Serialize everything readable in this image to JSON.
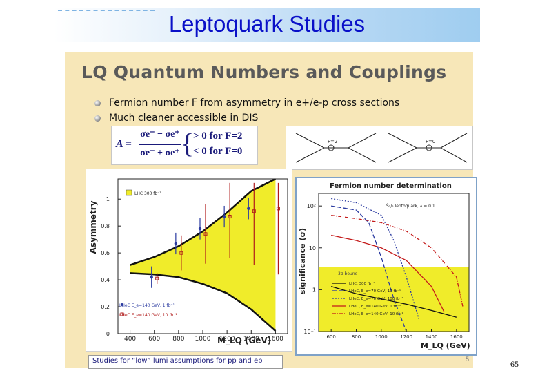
{
  "header": {
    "title": "Leptoquark Studies"
  },
  "slide": {
    "title": "LQ Quantum Numbers and Couplings",
    "bullets": [
      "Fermion number F from asymmetry in e+/e-p cross sections",
      "Much cleaner accessible in DIS"
    ],
    "formula": {
      "lhs": "A =",
      "numerator": "σe⁻ − σe⁺",
      "denominator": "σe⁻ + σe⁺",
      "case_1": "> 0 for F=2",
      "case_2": "< 0 for F=0"
    },
    "diagrams": {
      "left_label": "F=2",
      "right_label": "F=0"
    },
    "footer_note": "Studies for “low” lumi assumptions for pp and ep",
    "slide_number": "5"
  },
  "page_number": "65",
  "colors": {
    "title": "#0a10c8",
    "slide_bg": "#f7e7b8",
    "band_yellow": "#f0ec2a"
  },
  "chart_data": [
    {
      "type": "scatter",
      "ylabel": "Asymmetry",
      "xlabel": "M_LQ (GeV)",
      "xlim": [
        300,
        1700
      ],
      "ylim": [
        0,
        1.15
      ],
      "x_ticks": [
        "400",
        "600",
        "800",
        "1000",
        "1200",
        "1400",
        "1600"
      ],
      "y_ticks": [
        "0",
        "0.2",
        "0.4",
        "0.6",
        "0.8",
        "1"
      ],
      "legend": {
        "band": "LHC 300 fb⁻¹",
        "series_1": "LHeC E_e=140 GeV, 1 fb⁻¹",
        "series_2": "LHeC E_e=140 GeV, 10 fb⁻¹"
      },
      "series": [
        {
          "name": "LHeC E_e=140 GeV, 1 fb⁻¹",
          "x": [
            600,
            800,
            1000,
            1200,
            1400
          ],
          "y": [
            0.42,
            0.67,
            0.78,
            0.87,
            0.93
          ]
        },
        {
          "name": "LHeC E_e=140 GeV, 10 fb⁻¹",
          "x": [
            600,
            800,
            1000,
            1200,
            1400,
            1600
          ],
          "y": [
            0.41,
            0.6,
            0.74,
            0.87,
            0.91,
            0.93
          ]
        }
      ],
      "band": {
        "x": [
          400,
          600,
          800,
          1000,
          1200,
          1400,
          1600
        ],
        "upper": [
          0.51,
          0.57,
          0.65,
          0.76,
          0.9,
          1.06,
          1.15
        ],
        "lower": [
          0.45,
          0.44,
          0.42,
          0.37,
          0.3,
          0.18,
          0.02
        ]
      }
    },
    {
      "type": "line",
      "title": "Fermion number determination",
      "ylabel": "significance (σ)",
      "xlabel": "M_LQ (GeV)",
      "xlim": [
        500,
        1700
      ],
      "ylog": true,
      "y_ticks": [
        "10⁻¹",
        "1",
        "10",
        "10²"
      ],
      "x_ticks": [
        "600",
        "800",
        "1000",
        "1200",
        "1400",
        "1600"
      ],
      "annotation": "S̃₁/₂ leptoquark, λ = 0.1",
      "band_label": "3σ bound",
      "legend": [
        "LHC, 300 fb⁻¹",
        "LHeC, E_e=70 GeV, 10 fb⁻¹",
        "LHeC, E_e=70 GeV, 100 fb⁻¹",
        "LHeC, E_e=140 GeV, 1 fb⁻¹",
        "LHeC, E_e=140 GeV, 10 fb⁻¹"
      ],
      "series": [
        {
          "name": "LHC, 300 fb⁻¹",
          "x": [
            600,
            800,
            1000,
            1200,
            1400,
            1600
          ],
          "y": [
            1.2,
            0.8,
            0.6,
            0.45,
            0.32,
            0.22
          ]
        },
        {
          "name": "LHeC, E_e=70 GeV, 10 fb⁻¹",
          "x": [
            600,
            800,
            900,
            1000,
            1100,
            1200
          ],
          "y": [
            100,
            80,
            40,
            6,
            0.6,
            0.1
          ]
        },
        {
          "name": "LHeC, E_e=70 GeV, 100 fb⁻¹",
          "x": [
            600,
            800,
            1000,
            1100,
            1200,
            1300
          ],
          "y": [
            150,
            120,
            60,
            15,
            2,
            0.2
          ]
        },
        {
          "name": "LHeC, E_e=140 GeV, 1 fb⁻¹",
          "x": [
            600,
            800,
            1000,
            1200,
            1400,
            1500
          ],
          "y": [
            20,
            15,
            10,
            5,
            1.2,
            0.3
          ]
        },
        {
          "name": "LHeC, E_e=140 GeV, 10 fb⁻¹",
          "x": [
            600,
            800,
            1000,
            1200,
            1400,
            1600,
            1650
          ],
          "y": [
            60,
            50,
            40,
            25,
            10,
            2,
            0.4
          ]
        }
      ]
    }
  ]
}
